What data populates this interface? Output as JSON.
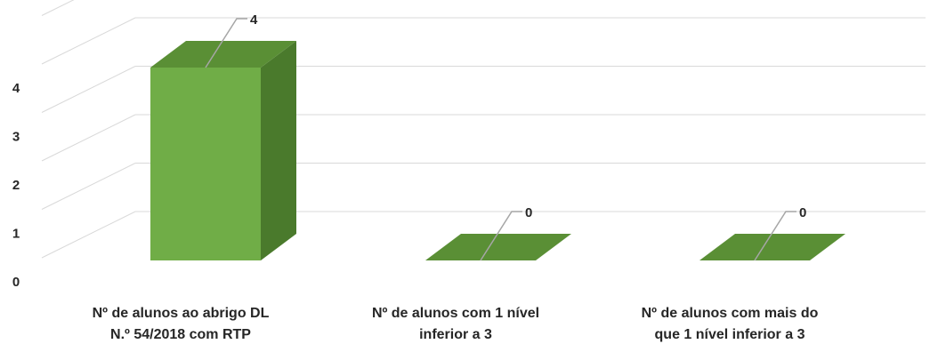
{
  "chart_data": {
    "type": "bar",
    "style": "3d-column",
    "categories": [
      [
        "Nº de alunos ao abrigo DL",
        "N.º 54/2018 com RTP"
      ],
      [
        "Nº de alunos com 1 nível",
        "inferior a 3"
      ],
      [
        "Nº de alunos com mais do",
        "que 1 nível inferior a 3"
      ]
    ],
    "values": [
      4,
      0,
      0
    ],
    "data_labels": [
      "4",
      "0",
      "0"
    ],
    "y_ticks": [
      "0",
      "1",
      "2",
      "3",
      "4"
    ],
    "ylim": [
      0,
      4
    ],
    "grid": true,
    "legend": "none",
    "colors": {
      "front": "#70ad47",
      "side": "#4a7a2c",
      "top": "#5a8f35",
      "grid": "#d9d9d9",
      "leader": "#a6a6a6",
      "text": "#262626"
    }
  }
}
